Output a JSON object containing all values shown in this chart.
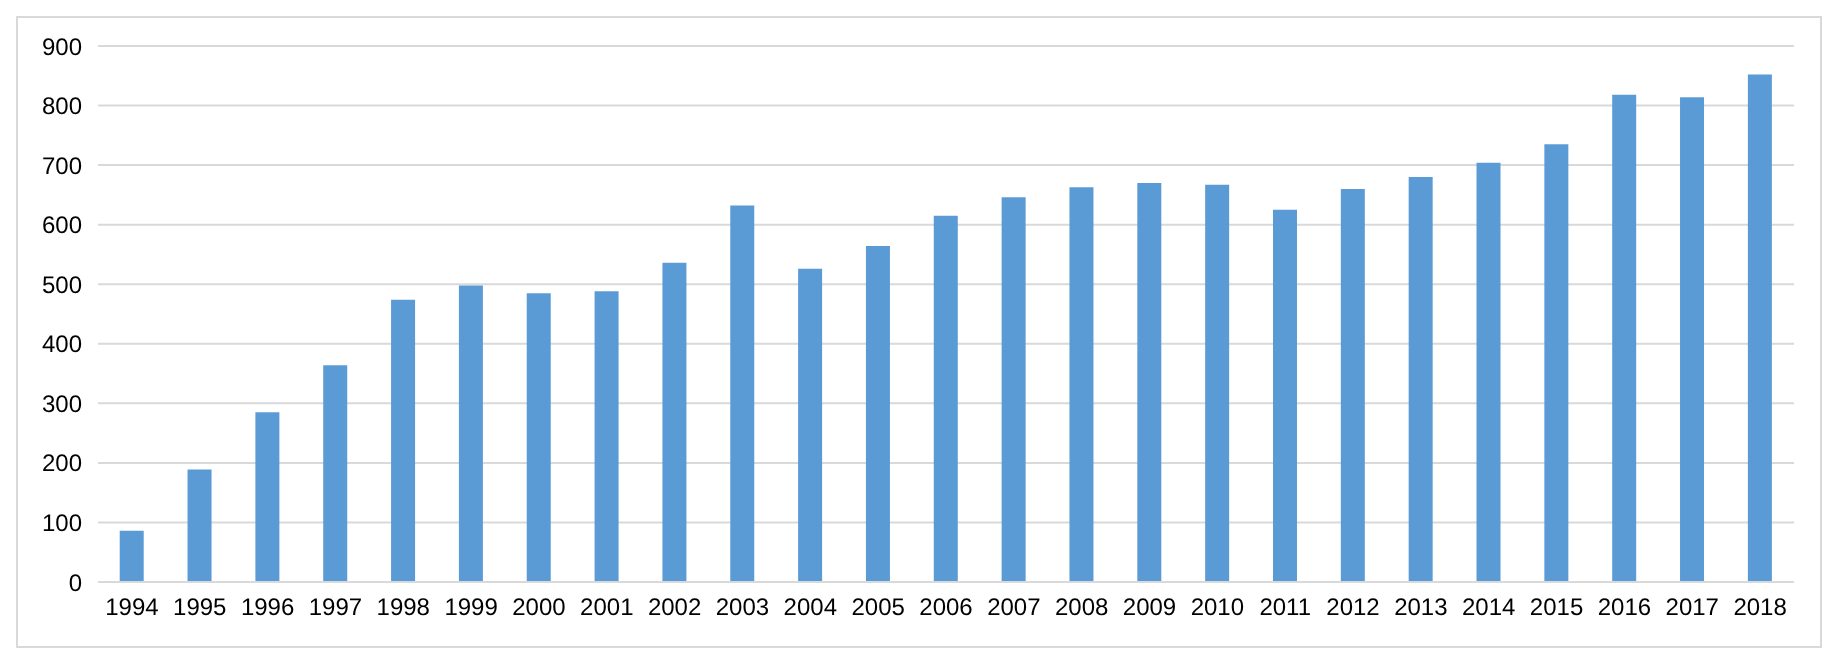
{
  "chart_data": {
    "type": "bar",
    "categories": [
      "1994",
      "1995",
      "1996",
      "1997",
      "1998",
      "1999",
      "2000",
      "2001",
      "2002",
      "2003",
      "2004",
      "2005",
      "2006",
      "2007",
      "2008",
      "2009",
      "2010",
      "2011",
      "2012",
      "2013",
      "2014",
      "2015",
      "2016",
      "2017",
      "2018"
    ],
    "values": [
      86,
      189,
      285,
      364,
      474,
      498,
      485,
      488,
      536,
      632,
      526,
      564,
      615,
      646,
      663,
      670,
      667,
      625,
      660,
      680,
      704,
      735,
      818,
      814,
      852
    ],
    "color": "#5b9bd5",
    "ylim": [
      0,
      900
    ],
    "yticks": [
      0,
      100,
      200,
      300,
      400,
      500,
      600,
      700,
      800,
      900
    ],
    "grid": "y"
  }
}
